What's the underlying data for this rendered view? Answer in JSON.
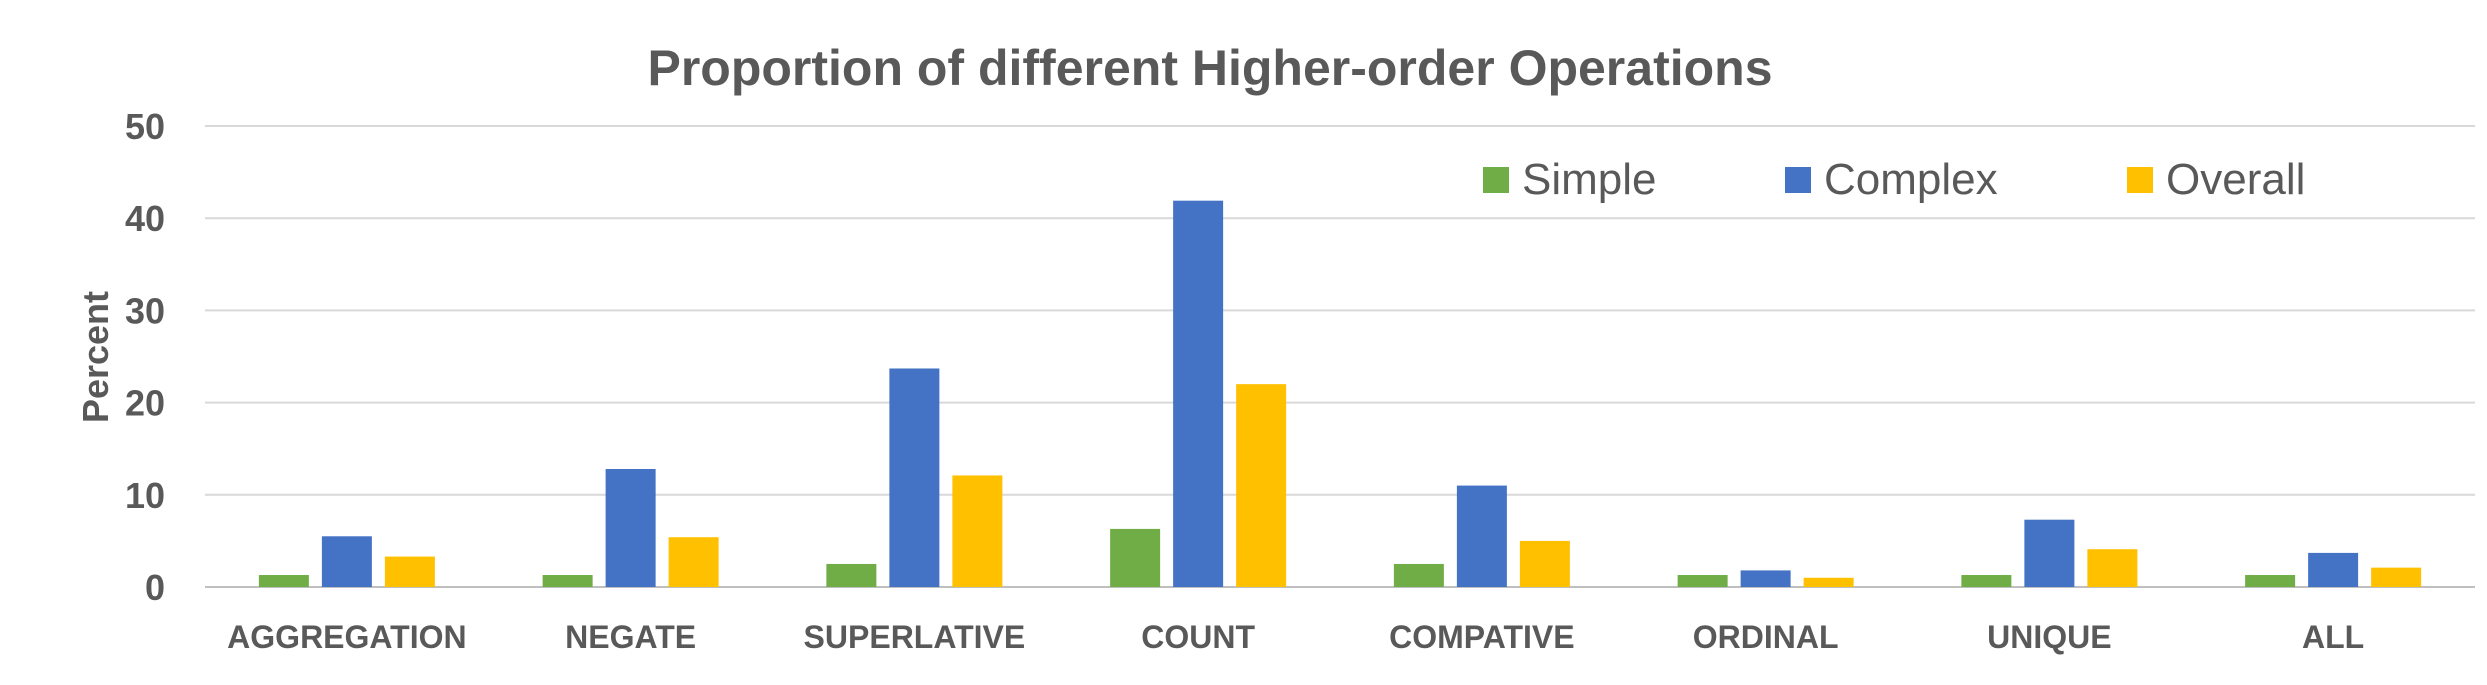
{
  "chart_data": {
    "type": "bar",
    "title": "Proportion of different Higher-order Operations",
    "ylabel": "Percent",
    "xlabel": "",
    "ylim": [
      0,
      50
    ],
    "yticks": [
      "0",
      "10",
      "20",
      "30",
      "40",
      "50"
    ],
    "grid": true,
    "legend_position": "top-right",
    "categories": [
      "AGGREGATION",
      "NEGATE",
      "SUPERLATIVE",
      "COUNT",
      "COMPATIVE",
      "ORDINAL",
      "UNIQUE",
      "ALL"
    ],
    "series": [
      {
        "name": "Simple",
        "color": "#70AD47",
        "values": [
          1.3,
          1.3,
          2.5,
          6.3,
          2.5,
          1.3,
          1.3,
          1.3
        ]
      },
      {
        "name": "Complex",
        "color": "#4472C4",
        "values": [
          5.5,
          12.8,
          23.7,
          41.9,
          11.0,
          1.8,
          7.3,
          3.7
        ]
      },
      {
        "name": "Overall",
        "color": "#FFC000",
        "values": [
          3.3,
          5.4,
          12.1,
          22.0,
          5.0,
          1.0,
          4.1,
          2.1
        ]
      }
    ]
  }
}
